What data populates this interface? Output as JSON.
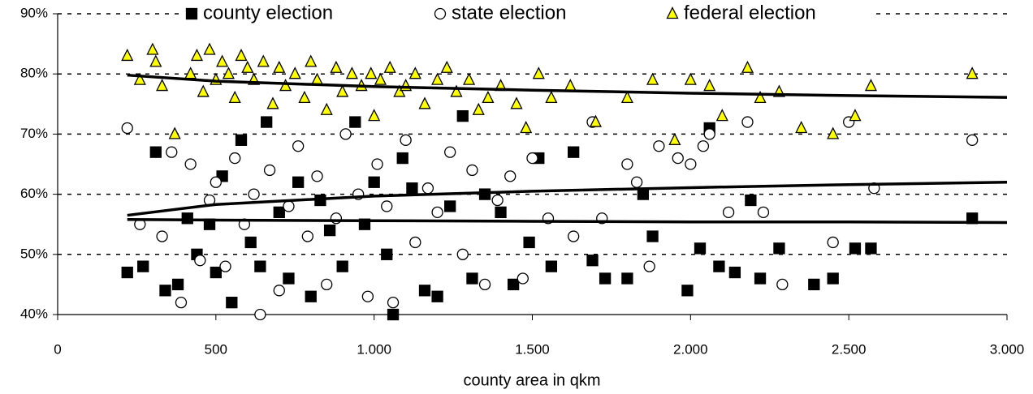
{
  "chart_data": {
    "type": "scatter",
    "xlabel": "county area in qkm",
    "xlim": [
      0,
      3000
    ],
    "xticks": [
      0,
      500,
      {
        "value": 1000,
        "label": "1.000"
      },
      {
        "value": 1500,
        "label": "1.500"
      },
      {
        "value": 2000,
        "label": "2.000"
      },
      {
        "value": 2500,
        "label": "2.500"
      },
      {
        "value": 3000,
        "label": "3.000"
      }
    ],
    "ylim": [
      40,
      90
    ],
    "yticks": [
      {
        "value": 40,
        "label": "40%"
      },
      {
        "value": 50,
        "label": "50%"
      },
      {
        "value": 60,
        "label": "60%"
      },
      {
        "value": 70,
        "label": "70%"
      },
      {
        "value": 80,
        "label": "80%"
      },
      {
        "value": 90,
        "label": "90%"
      }
    ],
    "grid": true,
    "legend": "top",
    "series": [
      {
        "name": "county election",
        "marker": "square",
        "color": "#000000",
        "x": [
          220,
          270,
          310,
          340,
          380,
          410,
          440,
          480,
          500,
          520,
          550,
          580,
          610,
          640,
          660,
          700,
          730,
          760,
          800,
          830,
          860,
          900,
          940,
          970,
          1000,
          1040,
          1060,
          1090,
          1120,
          1160,
          1200,
          1240,
          1280,
          1310,
          1350,
          1400,
          1440,
          1490,
          1520,
          1560,
          1630,
          1690,
          1730,
          1800,
          1850,
          1880,
          1990,
          2030,
          2060,
          2090,
          2140,
          2190,
          2220,
          2280,
          2390,
          2450,
          2520,
          2570,
          2890
        ],
        "values": [
          47,
          48,
          67,
          44,
          45,
          56,
          50,
          55,
          47,
          63,
          42,
          69,
          52,
          48,
          72,
          57,
          46,
          62,
          43,
          59,
          54,
          48,
          72,
          55,
          62,
          50,
          40,
          66,
          61,
          44,
          43,
          58,
          73,
          46,
          60,
          57,
          45,
          52,
          66,
          48,
          67,
          49,
          46,
          46,
          60,
          53,
          44,
          51,
          71,
          48,
          47,
          59,
          46,
          51,
          45,
          46,
          51,
          51,
          56
        ]
      },
      {
        "name": "state election",
        "marker": "circle",
        "color": "#ffffff",
        "x": [
          220,
          260,
          330,
          360,
          390,
          420,
          450,
          480,
          500,
          530,
          560,
          590,
          620,
          640,
          670,
          700,
          730,
          760,
          790,
          820,
          850,
          880,
          910,
          950,
          980,
          1010,
          1040,
          1060,
          1100,
          1130,
          1170,
          1200,
          1240,
          1280,
          1310,
          1350,
          1390,
          1430,
          1470,
          1500,
          1550,
          1630,
          1690,
          1720,
          1800,
          1830,
          1870,
          1900,
          1960,
          2000,
          2040,
          2060,
          2120,
          2180,
          2230,
          2290,
          2450,
          2500,
          2580,
          2890
        ],
        "values": [
          71,
          55,
          53,
          67,
          42,
          65,
          49,
          59,
          62,
          48,
          66,
          55,
          60,
          40,
          64,
          44,
          58,
          68,
          53,
          63,
          45,
          56,
          70,
          60,
          43,
          65,
          58,
          42,
          69,
          52,
          61,
          57,
          67,
          50,
          64,
          45,
          59,
          63,
          46,
          66,
          56,
          53,
          72,
          56,
          65,
          62,
          48,
          68,
          66,
          65,
          68,
          70,
          57,
          72,
          57,
          45,
          52,
          72,
          61,
          69
        ]
      },
      {
        "name": "federal election",
        "marker": "triangle",
        "color": "#ffff00",
        "x": [
          220,
          260,
          300,
          310,
          330,
          370,
          420,
          440,
          460,
          480,
          500,
          520,
          540,
          560,
          580,
          600,
          620,
          650,
          680,
          700,
          720,
          750,
          780,
          800,
          820,
          850,
          880,
          900,
          930,
          960,
          990,
          1000,
          1020,
          1050,
          1080,
          1100,
          1130,
          1160,
          1200,
          1230,
          1260,
          1300,
          1330,
          1360,
          1400,
          1450,
          1480,
          1520,
          1560,
          1620,
          1700,
          1800,
          1880,
          1950,
          2000,
          2060,
          2100,
          2180,
          2220,
          2280,
          2350,
          2450,
          2520,
          2570,
          2890
        ],
        "values": [
          83,
          79,
          84,
          82,
          78,
          70,
          80,
          83,
          77,
          84,
          79,
          82,
          80,
          76,
          83,
          81,
          79,
          82,
          75,
          81,
          78,
          80,
          76,
          82,
          79,
          74,
          81,
          77,
          80,
          78,
          80,
          73,
          79,
          81,
          77,
          78,
          80,
          75,
          79,
          81,
          77,
          79,
          74,
          76,
          78,
          75,
          71,
          80,
          76,
          78,
          72,
          76,
          79,
          69,
          79,
          78,
          73,
          81,
          76,
          77,
          71,
          70,
          73,
          78,
          80
        ]
      }
    ],
    "trend_color": "#000000",
    "trendlines": [
      {
        "x": [
          220,
          500,
          1000,
          1500,
          2000,
          2500,
          3000
        ],
        "values": [
          55.8,
          55.7,
          55.6,
          55.5,
          55.4,
          55.4,
          55.3
        ]
      },
      {
        "x": [
          220,
          500,
          1000,
          1500,
          2000,
          2500,
          3000
        ],
        "values": [
          56.5,
          58.3,
          59.7,
          60.5,
          61.1,
          61.6,
          62.0
        ]
      },
      {
        "x": [
          220,
          500,
          1000,
          1500,
          2000,
          2500,
          3000
        ],
        "values": [
          79.8,
          78.8,
          77.9,
          77.3,
          76.8,
          76.4,
          76.1
        ]
      }
    ]
  }
}
